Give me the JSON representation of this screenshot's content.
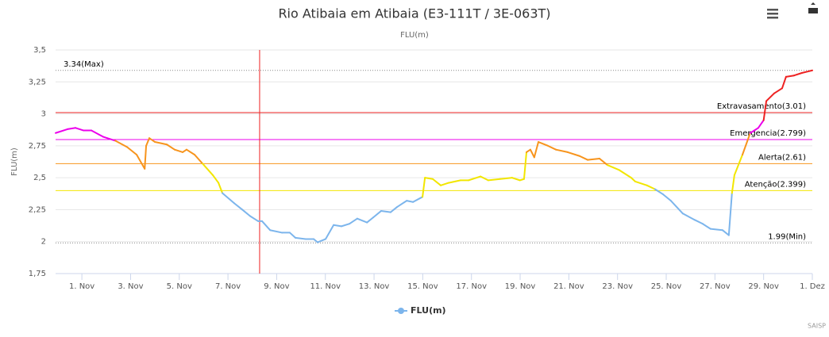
{
  "chart_data": {
    "type": "line",
    "title": "Rio Atibaia em Atibaia (E3-111T / 3E-063T)",
    "subtitle": "FLU(m)",
    "y_axis_label": "FLU(m)",
    "credits": "SAISP",
    "xlim": [
      -1.08,
      30
    ],
    "xticks": [
      {
        "value": 0,
        "label": "1. Nov"
      },
      {
        "value": 2,
        "label": "3. Nov"
      },
      {
        "value": 4,
        "label": "5. Nov"
      },
      {
        "value": 6,
        "label": "7. Nov"
      },
      {
        "value": 8,
        "label": "9. Nov"
      },
      {
        "value": 10,
        "label": "11. Nov"
      },
      {
        "value": 12,
        "label": "13. Nov"
      },
      {
        "value": 14,
        "label": "15. Nov"
      },
      {
        "value": 16,
        "label": "17. Nov"
      },
      {
        "value": 18,
        "label": "19. Nov"
      },
      {
        "value": 20,
        "label": "21. Nov"
      },
      {
        "value": 22,
        "label": "23. Nov"
      },
      {
        "value": 24,
        "label": "25. Nov"
      },
      {
        "value": 26,
        "label": "27. Nov"
      },
      {
        "value": 28,
        "label": "29. Nov"
      },
      {
        "value": 30,
        "label": "1. Dez"
      }
    ],
    "ylim": [
      1.75,
      3.5
    ],
    "yticks": [
      {
        "value": 1.75,
        "label": "1,75"
      },
      2,
      {
        "value": 2.25,
        "label": "2,25"
      },
      {
        "value": 2.5,
        "label": "2,5"
      },
      {
        "value": 2.75,
        "label": "2,75"
      },
      3,
      {
        "value": 3.25,
        "label": "3,25"
      },
      {
        "value": 3.5,
        "label": "3,5"
      }
    ],
    "grid": true,
    "plot_lines": [
      {
        "value": 2.399,
        "label": "Atenção(2.399)",
        "color": "#f2e600"
      },
      {
        "value": 2.61,
        "label": "Alerta(2.61)",
        "color": "#f7941d"
      },
      {
        "value": 2.799,
        "label": "Emergencia(2.799)",
        "color": "#ec00ec"
      },
      {
        "value": 3.01,
        "label": "Extravasamento(3.01)",
        "color": "#ee2222"
      }
    ],
    "max_line": {
      "value": 3.34,
      "label": "3.34(Max)"
    },
    "min_line": {
      "value": 1.99,
      "label": "1.99(Min)"
    },
    "crosshair_x": 7.3,
    "crosshair_color": "#ee2222",
    "series": [
      {
        "name": "FLU(m)",
        "color": "#7cb5ec",
        "x": [
          -1.08,
          -0.59,
          -0.26,
          0.07,
          0.39,
          0.88,
          1.37,
          1.86,
          2.25,
          2.58,
          2.64,
          2.77,
          3.0,
          3.49,
          3.81,
          4.14,
          4.3,
          4.63,
          4.96,
          5.38,
          5.61,
          5.77,
          6.26,
          6.59,
          6.91,
          7.24,
          7.4,
          7.73,
          8.22,
          8.54,
          8.77,
          9.19,
          9.52,
          9.68,
          10.01,
          10.34,
          10.66,
          10.99,
          11.31,
          11.71,
          11.97,
          12.29,
          12.68,
          12.94,
          13.34,
          13.6,
          13.99,
          14.09,
          14.41,
          14.74,
          15.06,
          15.55,
          15.88,
          16.37,
          16.69,
          17.18,
          17.67,
          17.99,
          18.16,
          18.26,
          18.42,
          18.58,
          18.75,
          19.14,
          19.47,
          19.95,
          20.44,
          20.77,
          21.26,
          21.58,
          22.07,
          22.56,
          22.73,
          23.21,
          23.54,
          23.87,
          24.19,
          24.68,
          25.17,
          25.49,
          25.82,
          26.31,
          26.57,
          26.7,
          26.8,
          27.13,
          27.45,
          27.62,
          27.78,
          28.0,
          28.11,
          28.43,
          28.76,
          28.92,
          29.25,
          29.57,
          30
        ],
        "values": [
          2.85,
          2.88,
          2.89,
          2.87,
          2.87,
          2.82,
          2.79,
          2.74,
          2.68,
          2.57,
          2.75,
          2.81,
          2.78,
          2.76,
          2.72,
          2.7,
          2.72,
          2.68,
          2.61,
          2.52,
          2.46,
          2.38,
          2.3,
          2.25,
          2.2,
          2.16,
          2.16,
          2.09,
          2.07,
          2.07,
          2.03,
          2.02,
          2.02,
          1.995,
          2.02,
          2.13,
          2.12,
          2.14,
          2.18,
          2.15,
          2.19,
          2.24,
          2.23,
          2.27,
          2.32,
          2.31,
          2.35,
          2.5,
          2.49,
          2.44,
          2.46,
          2.48,
          2.48,
          2.51,
          2.48,
          2.49,
          2.5,
          2.48,
          2.49,
          2.7,
          2.72,
          2.66,
          2.78,
          2.75,
          2.72,
          2.7,
          2.67,
          2.64,
          2.65,
          2.6,
          2.56,
          2.5,
          2.47,
          2.44,
          2.41,
          2.37,
          2.32,
          2.22,
          2.17,
          2.14,
          2.1,
          2.09,
          2.05,
          2.38,
          2.52,
          2.68,
          2.85,
          2.87,
          2.89,
          2.95,
          3.1,
          3.16,
          3.2,
          3.29,
          3.3,
          3.32,
          3.34
        ]
      }
    ]
  }
}
